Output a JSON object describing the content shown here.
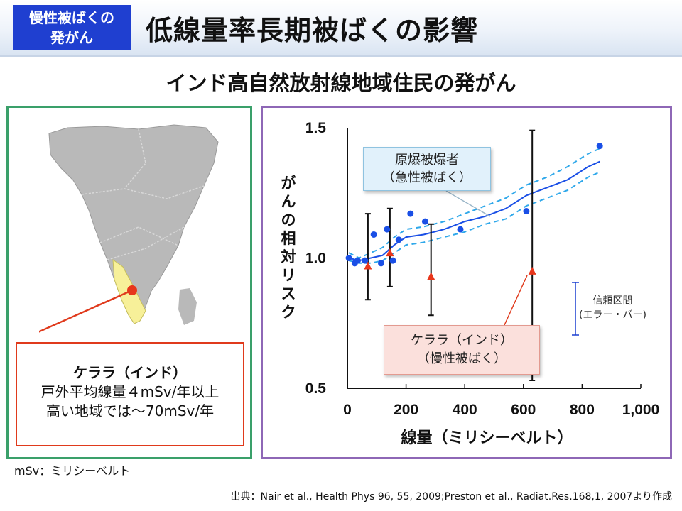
{
  "header": {
    "badge_line1": "慢性被ばくの",
    "badge_line2": "発がん",
    "title": "低線量率長期被ばくの影響"
  },
  "subtitle": "インド高自然放射線地域住民の発がん",
  "kerala_box": {
    "line1": "ケララ（インド）",
    "line2": "戸外平均線量４mSv/年以上",
    "line3": "高い地域では～70mSv/年"
  },
  "footnote": "mSv：ミリシーベルト",
  "source": "出典：Nair et al., Health Phys 96, 55, 2009;Preston et al., Radiat.Res.168,1, 2007より作成",
  "callouts": {
    "atomic_line1": "原爆被爆者",
    "atomic_line2": "（急性被ばく）",
    "kerala_line1": "ケララ（インド）",
    "kerala_line2": "（慢性被ばく）",
    "ci_line1": "信頼区間",
    "ci_line2": "(エラー・バー)"
  },
  "colors": {
    "badge": "#1f3fd0",
    "atomic_points": "#1a4fe6",
    "kerala_points": "#e8361b",
    "band_dashed": "#2fa8ea",
    "left_frame": "#3aa06a",
    "right_frame": "#8e67b6",
    "kerala_highlight": "#f7f099"
  },
  "chart_data": {
    "type": "scatter",
    "xlabel": "線量（ミリシーベルト）",
    "ylabel": "がんの相対リスク",
    "xlim": [
      0,
      1000
    ],
    "ylim": [
      0.5,
      1.5
    ],
    "xticks": [
      "0",
      "200",
      "400",
      "600",
      "800",
      "1,000"
    ],
    "yticks": [
      "0.5",
      "1.0",
      "1.5"
    ],
    "reference_line": 1.0,
    "series": [
      {
        "name": "原爆被爆者（急性被ばく）",
        "marker": "circle",
        "points": [
          [
            5,
            1.0
          ],
          [
            25,
            0.98
          ],
          [
            35,
            0.99
          ],
          [
            60,
            0.99
          ],
          [
            90,
            1.09
          ],
          [
            115,
            0.98
          ],
          [
            135,
            1.11
          ],
          [
            155,
            0.99
          ],
          [
            175,
            1.07
          ],
          [
            215,
            1.17
          ],
          [
            265,
            1.14
          ],
          [
            385,
            1.11
          ],
          [
            610,
            1.18
          ],
          [
            860,
            1.43
          ]
        ]
      },
      {
        "name": "ケララ（インド）（慢性被ばく）",
        "marker": "triangle",
        "points": [
          [
            70,
            0.97
          ],
          [
            145,
            1.02
          ],
          [
            285,
            0.93
          ],
          [
            630,
            0.95
          ]
        ],
        "ci": [
          [
            0.84,
            1.17
          ],
          [
            0.89,
            1.19
          ],
          [
            0.78,
            1.13
          ],
          [
            0.53,
            1.49
          ]
        ]
      }
    ],
    "fit": {
      "x": [
        5,
        40,
        80,
        120,
        160,
        200,
        260,
        330,
        400,
        470,
        540,
        610,
        680,
        750,
        820,
        860
      ],
      "y": [
        1.0,
        0.99,
        1.0,
        1.01,
        1.05,
        1.08,
        1.09,
        1.11,
        1.14,
        1.16,
        1.19,
        1.24,
        1.27,
        1.3,
        1.35,
        1.37
      ],
      "lower": [
        0.99,
        0.98,
        0.98,
        0.99,
        1.02,
        1.05,
        1.06,
        1.08,
        1.1,
        1.13,
        1.15,
        1.2,
        1.23,
        1.26,
        1.31,
        1.33
      ],
      "upper": [
        1.02,
        1.0,
        1.02,
        1.04,
        1.08,
        1.11,
        1.12,
        1.14,
        1.17,
        1.2,
        1.23,
        1.28,
        1.31,
        1.35,
        1.4,
        1.42
      ]
    }
  }
}
